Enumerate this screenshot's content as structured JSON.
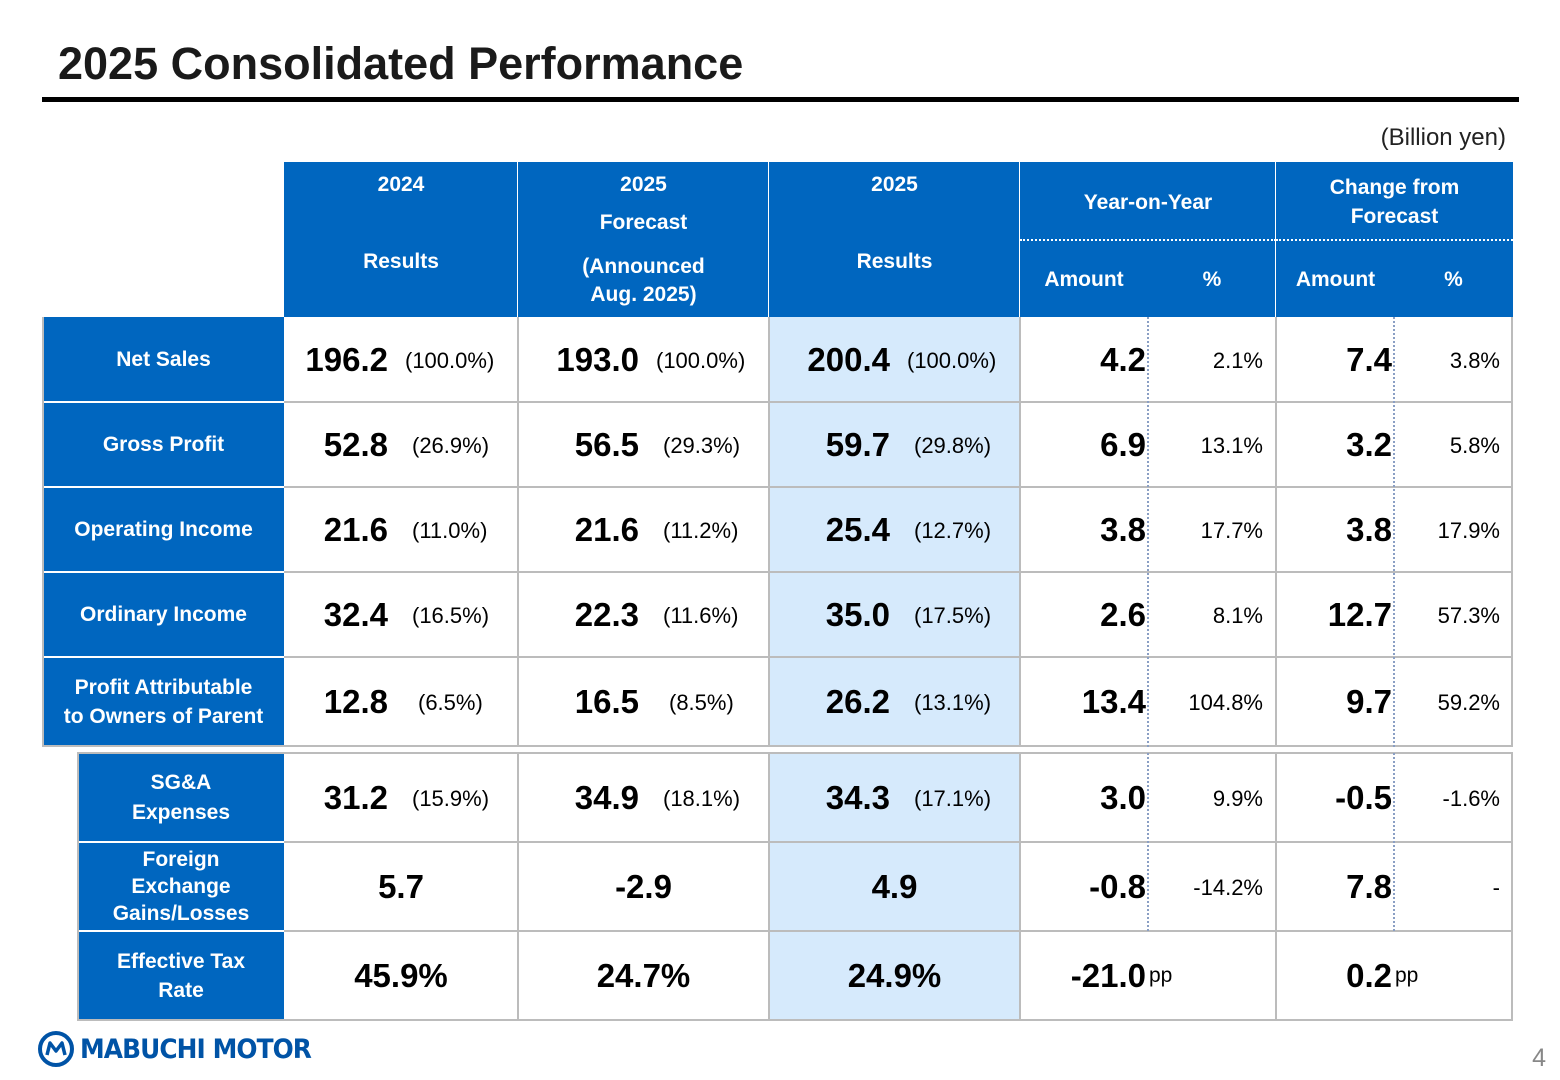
{
  "title": "2025 Consolidated Performance",
  "unit": "(Billion yen)",
  "headers": {
    "col2024": {
      "year": "2024",
      "label": "Results"
    },
    "forecast": {
      "year": "2025",
      "label1": "Forecast",
      "label2": "(Announced",
      "label3": "Aug. 2025)"
    },
    "col2025": {
      "year": "2025",
      "label": "Results"
    },
    "yoy": {
      "label": "Year-on-Year",
      "amount": "Amount",
      "pct": "%"
    },
    "chg": {
      "label1": "Change from",
      "label2": "Forecast",
      "amount": "Amount",
      "pct": "%"
    }
  },
  "rows": [
    {
      "label1": "Net Sales",
      "label2": "",
      "r24": "196.2",
      "r24p": "(100.0%)",
      "f25": "193.0",
      "f25p": "(100.0%)",
      "r25": "200.4",
      "r25p": "(100.0%)",
      "yoyA": "4.2",
      "yoyP": "2.1%",
      "chgA": "7.4",
      "chgP": "3.8%"
    },
    {
      "label1": "Gross Profit",
      "label2": "",
      "r24": "52.8",
      "r24p": "(26.9%)",
      "f25": "56.5",
      "f25p": "(29.3%)",
      "r25": "59.7",
      "r25p": "(29.8%)",
      "yoyA": "6.9",
      "yoyP": "13.1%",
      "chgA": "3.2",
      "chgP": "5.8%"
    },
    {
      "label1": "Operating Income",
      "label2": "",
      "r24": "21.6",
      "r24p": "(11.0%)",
      "f25": "21.6",
      "f25p": "(11.2%)",
      "r25": "25.4",
      "r25p": "(12.7%)",
      "yoyA": "3.8",
      "yoyP": "17.7%",
      "chgA": "3.8",
      "chgP": "17.9%"
    },
    {
      "label1": "Ordinary Income",
      "label2": "",
      "r24": "32.4",
      "r24p": "(16.5%)",
      "f25": "22.3",
      "f25p": "(11.6%)",
      "r25": "35.0",
      "r25p": "(17.5%)",
      "yoyA": "2.6",
      "yoyP": "8.1%",
      "chgA": "12.7",
      "chgP": "57.3%"
    },
    {
      "label1": "Profit Attributable",
      "label2": "to Owners of Parent",
      "r24": "12.8",
      "r24p": "(6.5%)",
      "f25": "16.5",
      "f25p": "(8.5%)",
      "r25": "26.2",
      "r25p": "(13.1%)",
      "yoyA": "13.4",
      "yoyP": "104.8%",
      "chgA": "9.7",
      "chgP": "59.2%"
    }
  ],
  "subrows": [
    {
      "label1": "SG&A",
      "label2": "Expenses",
      "label3": "",
      "r24": "31.2",
      "r24p": "(15.9%)",
      "f25": "34.9",
      "f25p": "(18.1%)",
      "r25": "34.3",
      "r25p": "(17.1%)",
      "yoyA": "3.0",
      "yoyP": "9.9%",
      "chgA": "-0.5",
      "chgP": "-1.6%"
    },
    {
      "label1": "Foreign",
      "label2": "Exchange",
      "label3": "Gains/Losses",
      "r24": "5.7",
      "f25": "-2.9",
      "r25": "4.9",
      "yoyA": "-0.8",
      "yoyP": "-14.2%",
      "chgA": "7.8",
      "chgP": "-"
    },
    {
      "label1": "Effective Tax",
      "label2": "Rate",
      "label3": "",
      "r24": "45.9%",
      "f25": "24.7%",
      "r25": "24.9%",
      "yoyA": "-21.0",
      "yoyU": "pp",
      "chgA": "0.2",
      "chgU": "pp"
    }
  ],
  "logo": {
    "text": "MABUCHI MOTOR",
    "icon": "mabuchi-logo-icon",
    "color": "#0053a6"
  },
  "page_number": "4",
  "colors": {
    "header_blue": "#0066bf",
    "highlight": "#d6eafc"
  }
}
